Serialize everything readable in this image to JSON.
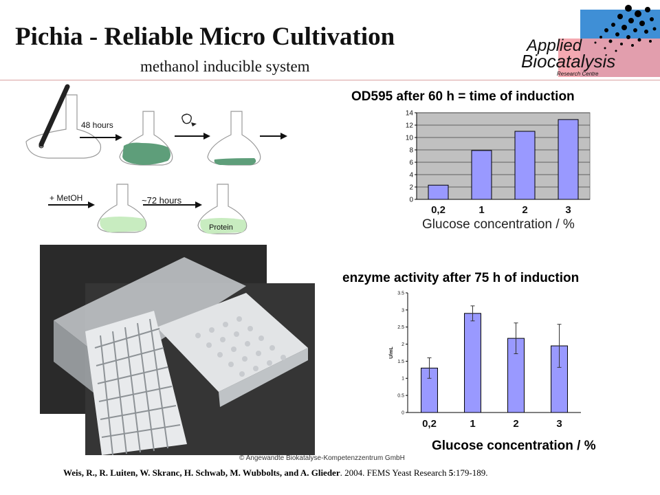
{
  "slide": {
    "title": "Pichia - Reliable Micro Cultivation",
    "subtitle": "methanol inducible system",
    "logo": {
      "line1": "Applied",
      "line2": "Biocatalysis",
      "line3": "Research Centre"
    },
    "copyright": "© Angewandte Biokatalyse-Kompetenzzentrum GmbH",
    "citation": {
      "authors": "Weis, R., R. Luiten, W. Skranc, H. Schwab, M. Wubbolts, and A. Glieder",
      "rest": ". 2004. FEMS Yeast Research ",
      "volume": "5",
      "pages": ":179-189."
    }
  },
  "illustration": {
    "step1_label": "48 hours",
    "step2_label": "+ MetOH",
    "step3_label": "~72 hours",
    "flask_label": "Protein"
  },
  "colors": {
    "bar_fill": "#9999ff",
    "plot_bg": "#c0c0c0",
    "logo_blue": "#3f8fd6",
    "logo_pink": "#f4a0a8",
    "culture_green": "#5e9e7a",
    "induced_green": "#c8ecc0"
  },
  "chart_data": [
    {
      "type": "bar",
      "title": "OD595 after 60 h = time of induction",
      "xlabel": "Glucose concentration / %",
      "ylabel": "",
      "categories": [
        "0,2",
        "1",
        "2",
        "3"
      ],
      "values": [
        2.3,
        7.9,
        11.0,
        12.9
      ],
      "ylim": [
        0,
        14
      ],
      "yticks": [
        "0",
        "2",
        "4",
        "6",
        "8",
        "10",
        "12",
        "14"
      ],
      "grid": true
    },
    {
      "type": "bar",
      "title": "enzyme activity after 75 h of induction",
      "xlabel": "Glucose concentration / %",
      "ylabel": "U/mL",
      "categories": [
        "0,2",
        "1",
        "2",
        "3"
      ],
      "values": [
        1.3,
        2.9,
        2.17,
        1.95
      ],
      "errors": [
        0.3,
        0.22,
        0.45,
        0.63
      ],
      "ylim": [
        0,
        3.5
      ],
      "yticks": [
        "0",
        "0.5",
        "1",
        "1.5",
        "2",
        "2.5",
        "3",
        "3.5"
      ],
      "grid": false
    }
  ]
}
